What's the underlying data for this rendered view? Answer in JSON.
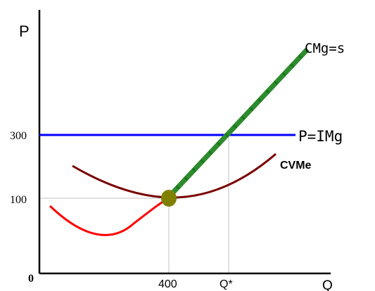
{
  "colors": {
    "background": "#ffffff",
    "axis": "#000000",
    "guide": "#c0c0c0",
    "price_line": "#0000ff",
    "marginal_cost": "#1a7a1a",
    "marginal_cost_dash": "#2e8b2e",
    "avg_variable_cost": "#7a0000",
    "falling_cost": "#ff0000",
    "point": "#808000"
  },
  "labels": {
    "y_axis": "P",
    "x_axis": "Q",
    "origin": "0",
    "price_line": "P=IMg",
    "marginal_cost": "CMg=s",
    "avg_variable_cost": "CVMe",
    "tick_300": "300",
    "tick_100": "100",
    "tick_400": "400",
    "tick_qstar": "Q*"
  }
}
